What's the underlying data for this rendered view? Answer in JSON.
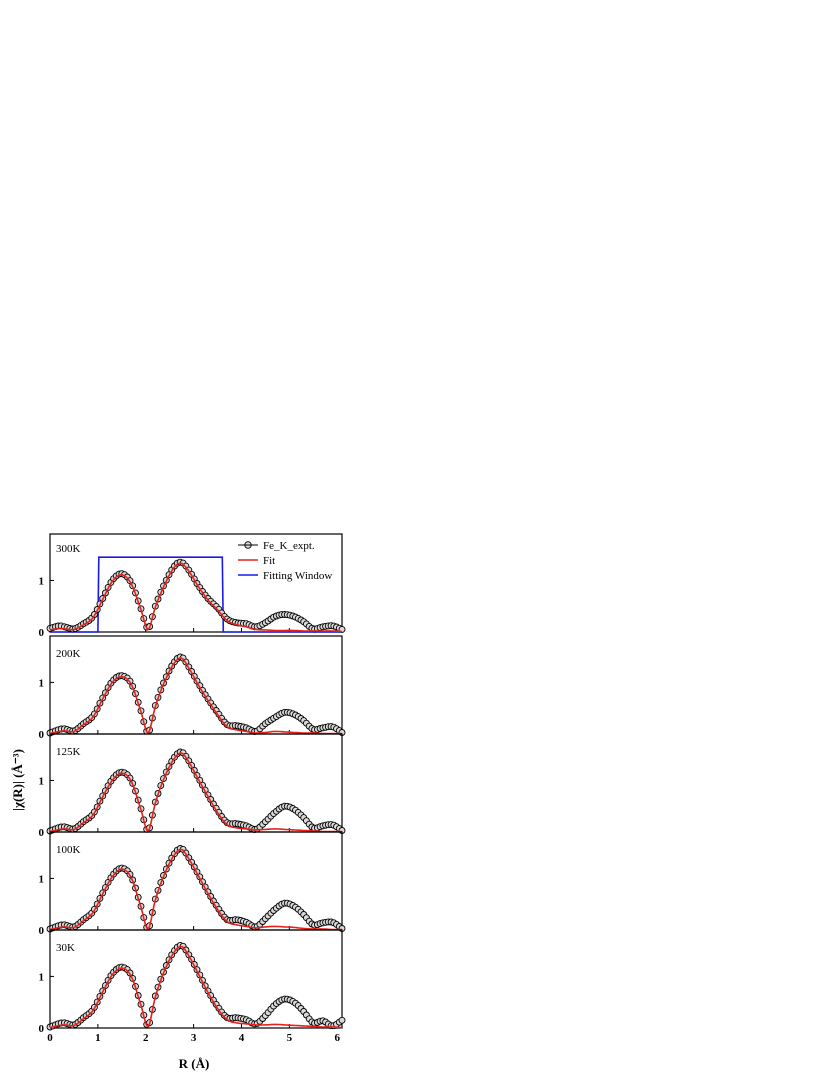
{
  "chart_data": {
    "type": "line",
    "xlabel": "R (Å)",
    "ylabel": "|χ(R)| (Å⁻³)",
    "xlim": [
      0,
      6.1
    ],
    "ylim": [
      0,
      1.9
    ],
    "x_ticks": [
      "0",
      "1",
      "2",
      "3",
      "4",
      "5",
      "6"
    ],
    "y_ticks": [
      "0",
      "1"
    ],
    "legend": {
      "placement": "top-right",
      "entries": [
        "Fe_K_expt.",
        "Fit",
        "Fitting Window"
      ]
    },
    "colors": {
      "expt": "#000000",
      "fit": "#e8201a",
      "window": "#1a1ae6"
    },
    "fitting_window": {
      "x": [
        0,
        1.0,
        1.02,
        3.6,
        3.62,
        6.1
      ],
      "y": [
        0.0,
        0.0,
        1.45,
        1.45,
        0.0,
        0.0
      ]
    },
    "panels": [
      {
        "label": "300K",
        "expt": {
          "x": [
            0,
            0.2,
            0.3,
            0.5,
            0.7,
            0.9,
            1.1,
            1.3,
            1.5,
            1.7,
            1.9,
            2.05,
            2.2,
            2.4,
            2.6,
            2.75,
            2.9,
            3.1,
            3.3,
            3.5,
            3.7,
            3.9,
            4.1,
            4.3,
            4.5,
            4.7,
            4.9,
            5.1,
            5.3,
            5.5,
            5.7,
            5.9,
            6.1
          ],
          "y": [
            0.07,
            0.12,
            0.1,
            0.06,
            0.16,
            0.3,
            0.65,
            1.0,
            1.13,
            0.95,
            0.45,
            0.07,
            0.5,
            0.95,
            1.28,
            1.35,
            1.2,
            0.9,
            0.65,
            0.47,
            0.25,
            0.18,
            0.16,
            0.1,
            0.18,
            0.3,
            0.34,
            0.3,
            0.2,
            0.06,
            0.1,
            0.12,
            0.05
          ]
        },
        "fit": {
          "x": [
            0,
            0.2,
            0.3,
            0.5,
            0.7,
            0.9,
            1.1,
            1.3,
            1.5,
            1.7,
            1.9,
            2.05,
            2.2,
            2.4,
            2.6,
            2.75,
            2.9,
            3.1,
            3.3,
            3.5,
            3.7,
            3.9,
            4.1,
            4.3,
            4.5,
            4.7,
            4.9,
            5.1,
            5.3,
            5.5,
            5.7,
            5.9,
            6.1
          ],
          "y": [
            0.04,
            0.07,
            0.06,
            0.05,
            0.14,
            0.28,
            0.63,
            0.98,
            1.11,
            0.93,
            0.43,
            0.05,
            0.48,
            0.93,
            1.26,
            1.33,
            1.18,
            0.88,
            0.62,
            0.43,
            0.22,
            0.14,
            0.1,
            0.05,
            0.04,
            0.03,
            0.03,
            0.03,
            0.02,
            0.02,
            0.02,
            0.02,
            0.01
          ]
        }
      },
      {
        "label": "200K",
        "expt": {
          "x": [
            0,
            0.2,
            0.3,
            0.5,
            0.7,
            0.9,
            1.1,
            1.3,
            1.5,
            1.7,
            1.9,
            2.05,
            2.2,
            2.4,
            2.6,
            2.75,
            2.9,
            3.1,
            3.3,
            3.5,
            3.7,
            3.9,
            4.1,
            4.3,
            4.5,
            4.7,
            4.9,
            5.1,
            5.3,
            5.5,
            5.7,
            5.9,
            6.1
          ],
          "y": [
            0.02,
            0.09,
            0.1,
            0.06,
            0.2,
            0.35,
            0.7,
            1.02,
            1.13,
            0.98,
            0.45,
            0.03,
            0.55,
            1.05,
            1.4,
            1.49,
            1.3,
            0.98,
            0.68,
            0.42,
            0.18,
            0.16,
            0.12,
            0.05,
            0.2,
            0.32,
            0.42,
            0.38,
            0.26,
            0.09,
            0.12,
            0.14,
            0.03
          ]
        },
        "fit": {
          "x": [
            0,
            0.2,
            0.3,
            0.5,
            0.7,
            0.9,
            1.1,
            1.3,
            1.5,
            1.7,
            1.9,
            2.05,
            2.2,
            2.4,
            2.6,
            2.75,
            2.9,
            3.1,
            3.3,
            3.5,
            3.7,
            3.9,
            4.1,
            4.3,
            4.5,
            4.7,
            4.9,
            5.1,
            5.3,
            5.5,
            5.7,
            5.9,
            6.1
          ],
          "y": [
            0.01,
            0.05,
            0.06,
            0.05,
            0.18,
            0.33,
            0.68,
            1.0,
            1.11,
            0.96,
            0.43,
            0.02,
            0.53,
            1.03,
            1.38,
            1.47,
            1.28,
            0.95,
            0.65,
            0.38,
            0.14,
            0.08,
            0.05,
            0.02,
            0.03,
            0.05,
            0.04,
            0.03,
            0.02,
            0.02,
            0.01,
            0.01,
            0.01
          ]
        }
      },
      {
        "label": "125K",
        "expt": {
          "x": [
            0,
            0.2,
            0.3,
            0.5,
            0.7,
            0.9,
            1.1,
            1.3,
            1.5,
            1.7,
            1.9,
            2.05,
            2.2,
            2.4,
            2.6,
            2.75,
            2.9,
            3.1,
            3.3,
            3.5,
            3.7,
            3.9,
            4.1,
            4.3,
            4.5,
            4.7,
            4.9,
            5.1,
            5.3,
            5.5,
            5.7,
            5.9,
            6.1
          ],
          "y": [
            0.02,
            0.09,
            0.1,
            0.06,
            0.2,
            0.35,
            0.7,
            1.02,
            1.16,
            1.0,
            0.45,
            0.03,
            0.58,
            1.1,
            1.45,
            1.55,
            1.38,
            1.05,
            0.72,
            0.42,
            0.18,
            0.16,
            0.12,
            0.05,
            0.2,
            0.38,
            0.5,
            0.44,
            0.28,
            0.08,
            0.12,
            0.14,
            0.03
          ]
        },
        "fit": {
          "x": [
            0,
            0.2,
            0.3,
            0.5,
            0.7,
            0.9,
            1.1,
            1.3,
            1.5,
            1.7,
            1.9,
            2.05,
            2.2,
            2.4,
            2.6,
            2.75,
            2.9,
            3.1,
            3.3,
            3.5,
            3.7,
            3.9,
            4.1,
            4.3,
            4.5,
            4.7,
            4.9,
            5.1,
            5.3,
            5.5,
            5.7,
            5.9,
            6.1
          ],
          "y": [
            0.01,
            0.05,
            0.06,
            0.05,
            0.18,
            0.33,
            0.68,
            1.0,
            1.14,
            0.98,
            0.43,
            0.02,
            0.56,
            1.08,
            1.43,
            1.53,
            1.36,
            1.02,
            0.69,
            0.38,
            0.14,
            0.08,
            0.06,
            0.04,
            0.05,
            0.06,
            0.05,
            0.04,
            0.03,
            0.02,
            0.01,
            0.01,
            0.01
          ]
        }
      },
      {
        "label": "100K",
        "expt": {
          "x": [
            0,
            0.2,
            0.3,
            0.5,
            0.7,
            0.9,
            1.1,
            1.3,
            1.5,
            1.7,
            1.9,
            2.05,
            2.2,
            2.4,
            2.6,
            2.75,
            2.9,
            3.1,
            3.3,
            3.5,
            3.7,
            3.9,
            4.1,
            4.3,
            4.5,
            4.7,
            4.9,
            5.1,
            5.3,
            5.5,
            5.7,
            5.9,
            6.1
          ],
          "y": [
            0.02,
            0.09,
            0.1,
            0.06,
            0.2,
            0.36,
            0.72,
            1.05,
            1.2,
            1.03,
            0.46,
            0.03,
            0.6,
            1.12,
            1.48,
            1.58,
            1.4,
            1.08,
            0.74,
            0.44,
            0.2,
            0.2,
            0.15,
            0.06,
            0.22,
            0.4,
            0.52,
            0.46,
            0.3,
            0.1,
            0.14,
            0.15,
            0.03
          ]
        },
        "fit": {
          "x": [
            0,
            0.2,
            0.3,
            0.5,
            0.7,
            0.9,
            1.1,
            1.3,
            1.5,
            1.7,
            1.9,
            2.05,
            2.2,
            2.4,
            2.6,
            2.75,
            2.9,
            3.1,
            3.3,
            3.5,
            3.7,
            3.9,
            4.1,
            4.3,
            4.5,
            4.7,
            4.9,
            5.1,
            5.3,
            5.5,
            5.7,
            5.9,
            6.1
          ],
          "y": [
            0.01,
            0.05,
            0.06,
            0.05,
            0.18,
            0.34,
            0.7,
            1.03,
            1.18,
            1.01,
            0.44,
            0.02,
            0.58,
            1.1,
            1.46,
            1.56,
            1.38,
            1.05,
            0.71,
            0.4,
            0.16,
            0.1,
            0.07,
            0.04,
            0.06,
            0.07,
            0.06,
            0.05,
            0.03,
            0.02,
            0.02,
            0.01,
            0.01
          ]
        }
      },
      {
        "label": "30K",
        "expt": {
          "x": [
            0,
            0.2,
            0.3,
            0.5,
            0.7,
            0.9,
            1.1,
            1.3,
            1.5,
            1.7,
            1.9,
            2.05,
            2.2,
            2.4,
            2.6,
            2.75,
            2.9,
            3.1,
            3.3,
            3.5,
            3.7,
            3.9,
            4.1,
            4.3,
            4.5,
            4.7,
            4.9,
            5.1,
            5.3,
            5.5,
            5.7,
            5.9,
            6.1
          ],
          "y": [
            0.02,
            0.09,
            0.1,
            0.06,
            0.2,
            0.36,
            0.72,
            1.05,
            1.18,
            1.02,
            0.46,
            0.05,
            0.62,
            1.15,
            1.5,
            1.6,
            1.42,
            1.08,
            0.72,
            0.42,
            0.2,
            0.2,
            0.16,
            0.08,
            0.24,
            0.45,
            0.56,
            0.5,
            0.32,
            0.1,
            0.14,
            0.04,
            0.15
          ]
        },
        "fit": {
          "x": [
            0,
            0.2,
            0.3,
            0.5,
            0.7,
            0.9,
            1.1,
            1.3,
            1.5,
            1.7,
            1.9,
            2.05,
            2.2,
            2.4,
            2.6,
            2.75,
            2.9,
            3.1,
            3.3,
            3.5,
            3.7,
            3.9,
            4.1,
            4.3,
            4.5,
            4.7,
            4.9,
            5.1,
            5.3,
            5.5,
            5.7,
            5.9,
            6.1
          ],
          "y": [
            0.01,
            0.05,
            0.06,
            0.05,
            0.18,
            0.34,
            0.7,
            1.03,
            1.16,
            1.0,
            0.44,
            0.03,
            0.6,
            1.13,
            1.48,
            1.58,
            1.4,
            1.05,
            0.69,
            0.38,
            0.16,
            0.1,
            0.08,
            0.06,
            0.06,
            0.07,
            0.06,
            0.05,
            0.04,
            0.03,
            0.02,
            0.02,
            0.01
          ]
        }
      }
    ]
  }
}
